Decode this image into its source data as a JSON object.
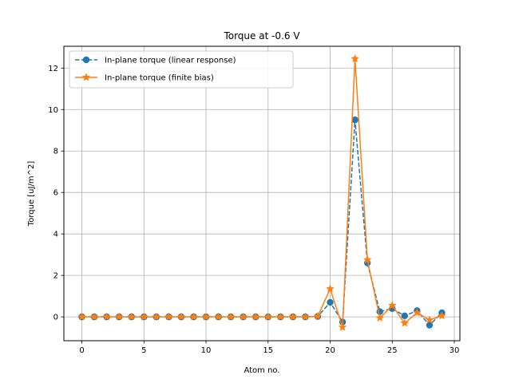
{
  "chart_data": {
    "type": "line",
    "title": "Torque at -0.6 V",
    "xlabel": "Atom no.",
    "ylabel": "Torque [uJ/m^2]",
    "xlim": [
      -1.45,
      30.45
    ],
    "ylim": [
      -1.15,
      13.05
    ],
    "xticks": [
      0,
      5,
      10,
      15,
      20,
      25,
      30
    ],
    "yticks": [
      0,
      2,
      4,
      6,
      8,
      10,
      12
    ],
    "grid": true,
    "legend_position": "top-left",
    "x": [
      0,
      1,
      2,
      3,
      4,
      5,
      6,
      7,
      8,
      9,
      10,
      11,
      12,
      13,
      14,
      15,
      16,
      17,
      18,
      19,
      20,
      21,
      22,
      23,
      24,
      25,
      26,
      27,
      28,
      29
    ],
    "series": [
      {
        "name": "In-plane torque (linear response)",
        "color": "#1f77b4",
        "line_style": "dashed",
        "marker": "circle",
        "values": [
          0,
          0,
          0,
          0,
          0,
          0,
          0,
          0,
          0,
          0,
          0,
          0,
          0,
          0,
          0,
          0,
          0,
          0,
          0,
          0.02,
          0.7,
          -0.25,
          9.5,
          2.6,
          0.25,
          0.4,
          0.05,
          0.3,
          -0.4,
          0.2
        ]
      },
      {
        "name": "In-plane torque (finite bias)",
        "color": "#ff7f0e",
        "line_style": "solid",
        "marker": "star",
        "values": [
          0,
          0,
          0,
          0,
          0,
          0,
          0,
          0,
          0,
          0,
          0,
          0,
          0,
          0,
          0,
          0,
          0,
          0,
          0,
          0.03,
          1.35,
          -0.5,
          12.45,
          2.75,
          -0.05,
          0.55,
          -0.3,
          0.2,
          -0.15,
          0.05
        ]
      }
    ]
  }
}
